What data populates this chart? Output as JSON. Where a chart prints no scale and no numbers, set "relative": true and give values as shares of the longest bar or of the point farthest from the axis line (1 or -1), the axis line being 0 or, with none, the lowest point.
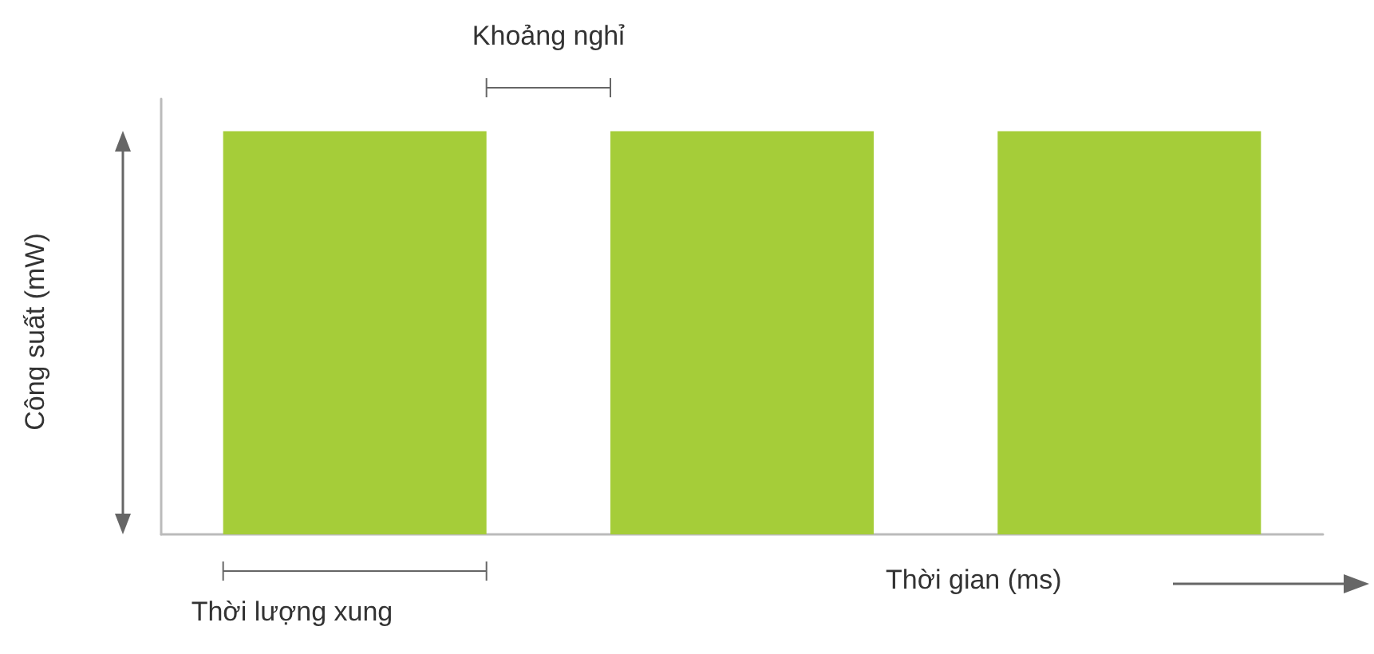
{
  "chart_data": {
    "type": "bar",
    "relative": true,
    "categories": [
      null,
      null,
      null
    ],
    "values": [
      1,
      1,
      1
    ],
    "color": "#a5cd39",
    "xlabel": "Thời gian (ms)",
    "ylabel": "Công suất (mW)",
    "annotations": [
      "Khoảng nghỉ",
      "Thời lượng xung"
    ]
  }
}
